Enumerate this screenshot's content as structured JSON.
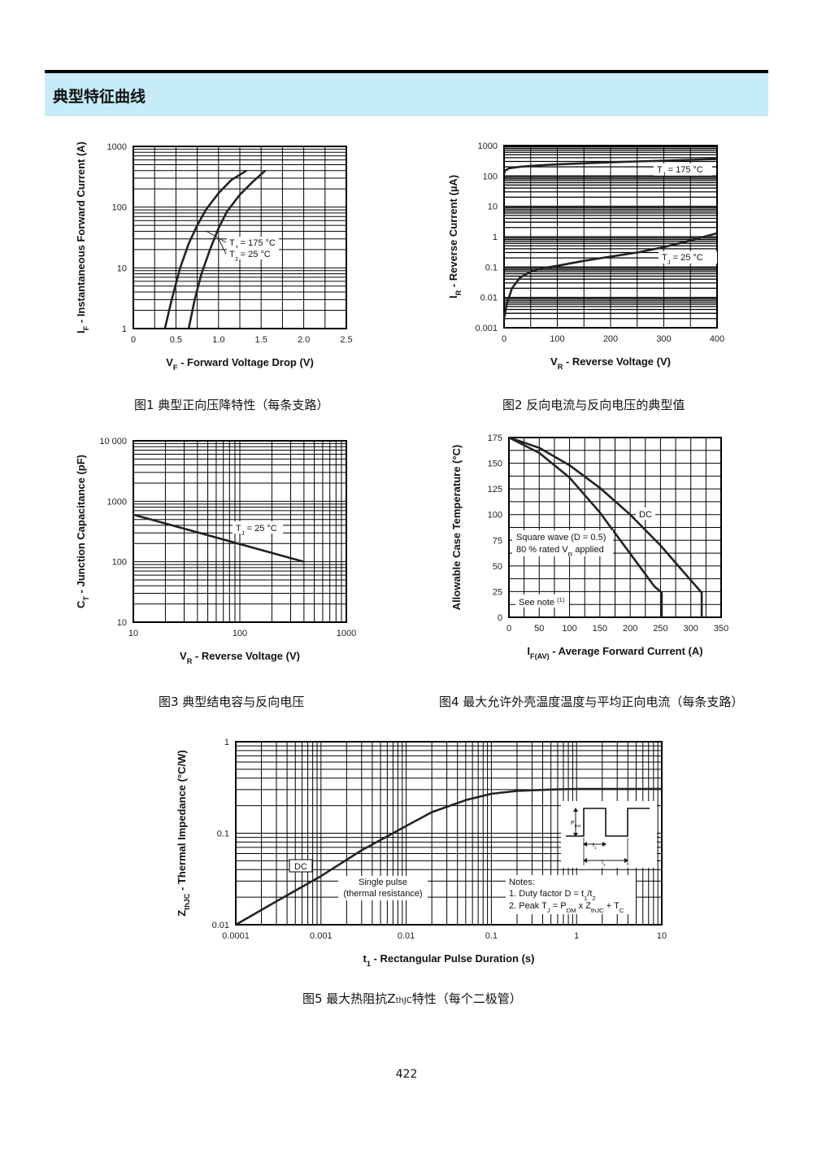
{
  "header": {
    "title": "典型特征曲线"
  },
  "page_number": "422",
  "captions": {
    "fig1": "图1  典型正向压降特性（每条支路）",
    "fig2": "图2  反向电流与反向电压的典型值",
    "fig3": "图3  典型结电容与反向电压",
    "fig4": "图4  最大允许外壳温度温度与平均正向电流（每条支路）",
    "fig5a": "图5  最大热阻抗Z",
    "fig5sub": "thJC",
    "fig5b": "特性（每个二极管）"
  },
  "chart_data": [
    {
      "id": "fig1",
      "type": "line",
      "xlabel": "V",
      "xlabel_sub": "F",
      "xlabel_rest": " - Forward Voltage Drop (V)",
      "ylabel": "I",
      "ylabel_sub": "F",
      "ylabel_rest": " - Instantaneous Forward Current (A)",
      "xlim": [
        0,
        2.5
      ],
      "ylim": [
        1,
        1000
      ],
      "yscale": "log",
      "xticks": [
        "0",
        "0.5",
        "1.0",
        "1.5",
        "2.0",
        "2.5"
      ],
      "yticks": [
        "1",
        "10",
        "100",
        "1000"
      ],
      "series": [
        {
          "name": "T = 175 °C",
          "name_pre": "T",
          "name_sub": "J",
          "name_post": " = 175 °C",
          "x": [
            0.37,
            0.45,
            0.55,
            0.65,
            0.75,
            0.85,
            1.0,
            1.15,
            1.33
          ],
          "y": [
            1,
            3,
            10,
            25,
            50,
            90,
            170,
            280,
            400
          ]
        },
        {
          "name": "T = 25 °C",
          "name_pre": "T",
          "name_sub": "J",
          "name_post": " = 25 °C",
          "x": [
            0.65,
            0.72,
            0.8,
            0.9,
            1.0,
            1.1,
            1.25,
            1.4,
            1.55
          ],
          "y": [
            1,
            3,
            8,
            20,
            45,
            85,
            160,
            260,
            400
          ]
        }
      ]
    },
    {
      "id": "fig2",
      "type": "line",
      "xlabel": "V",
      "xlabel_sub": "R",
      "xlabel_rest": " - Reverse Voltage (V)",
      "ylabel": "I",
      "ylabel_sub": "R",
      "ylabel_rest": " - Reverse Current (µA)",
      "xlim": [
        0,
        400
      ],
      "ylim": [
        0.001,
        1000
      ],
      "yscale": "log",
      "xticks": [
        "0",
        "100",
        "200",
        "300",
        "400"
      ],
      "yticks": [
        "0.001",
        "0.01",
        "0.1",
        "1",
        "10",
        "100",
        "1000"
      ],
      "series": [
        {
          "name": "T = 175 °C",
          "name_pre": "T",
          "name_sub": "J",
          "name_post": " = 175 °C",
          "x": [
            0,
            2,
            10,
            30,
            60,
            100,
            150,
            200,
            250,
            300,
            350,
            400
          ],
          "y": [
            120,
            150,
            180,
            200,
            220,
            240,
            260,
            280,
            300,
            320,
            340,
            360
          ]
        },
        {
          "name": "T = 25 °C",
          "name_pre": "T",
          "name_sub": "J",
          "name_post": " = 25 °C",
          "x": [
            0,
            5,
            15,
            30,
            50,
            70,
            100,
            150,
            200,
            250,
            300,
            350,
            400
          ],
          "y": [
            0.002,
            0.006,
            0.02,
            0.045,
            0.07,
            0.09,
            0.11,
            0.16,
            0.22,
            0.3,
            0.45,
            0.75,
            1.3
          ]
        }
      ]
    },
    {
      "id": "fig3",
      "type": "line",
      "xlabel": "V",
      "xlabel_sub": "R",
      "xlabel_rest": " - Reverse Voltage (V)",
      "ylabel": "C",
      "ylabel_sub": "T",
      "ylabel_rest": " - Junction Capacitance (pF)",
      "xlim": [
        10,
        1000
      ],
      "ylim": [
        10,
        10000
      ],
      "xscale": "log",
      "yscale": "log",
      "xticks": [
        "10",
        "100",
        "1000"
      ],
      "yticks": [
        "10",
        "100",
        "1000",
        "10 000"
      ],
      "series": [
        {
          "name": "T = 25 °C",
          "name_pre": "T",
          "name_sub": "J",
          "name_post": " = 25 °C",
          "x": [
            10,
            400
          ],
          "y": [
            600,
            100
          ]
        }
      ]
    },
    {
      "id": "fig4",
      "type": "line",
      "xlabel": "I",
      "xlabel_sub": "F(AV)",
      "xlabel_rest": " - Average Forward Current (A)",
      "ylabel": "Allowable Case Temperature (°C)",
      "xlim": [
        0,
        350
      ],
      "ylim": [
        0,
        175
      ],
      "xticks": [
        "0",
        "50",
        "100",
        "150",
        "200",
        "250",
        "300",
        "350"
      ],
      "yticks": [
        "0",
        "25",
        "50",
        "75",
        "100",
        "125",
        "150",
        "175"
      ],
      "annotations": {
        "dc": "DC",
        "square1": "Square wave (D = 0.5)",
        "square2_pre": "80 % rated V",
        "square2_sub": "R",
        "square2_post": " applied",
        "note": "See note",
        "note_sup": "(1)"
      },
      "series": [
        {
          "name": "DC",
          "x": [
            0,
            50,
            100,
            150,
            200,
            250,
            300,
            318,
            318
          ],
          "y": [
            175,
            165,
            148,
            126,
            100,
            70,
            36,
            24,
            0
          ]
        },
        {
          "name": "Square wave (D = 0.5)",
          "x": [
            0,
            50,
            100,
            150,
            200,
            240,
            252,
            252
          ],
          "y": [
            175,
            160,
            136,
            102,
            62,
            30,
            24,
            0
          ]
        }
      ]
    },
    {
      "id": "fig5",
      "type": "line",
      "xlabel": "t",
      "xlabel_sub": "1",
      "xlabel_rest": " - Rectangular Pulse Duration (s)",
      "ylabel": "Z",
      "ylabel_sub": "thJC",
      "ylabel_rest": " - Thermal Impedance (°C/W)",
      "xlim": [
        0.0001,
        10
      ],
      "ylim": [
        0.01,
        1
      ],
      "xscale": "log",
      "yscale": "log",
      "xticks": [
        "0.0001",
        "0.001",
        "0.01",
        "0.1",
        "1",
        "10"
      ],
      "yticks": [
        "0.01",
        "0.1",
        "1"
      ],
      "annotations": {
        "dc": "DC",
        "single1": "Single pulse",
        "single2": "(thermal resistance)",
        "notes": "Notes:",
        "note1_pre": "1. Duty factor D = t",
        "note1_sub1": "1",
        "note1_mid": "/t",
        "note1_sub2": "2",
        "note2_pre": "2. Peak T",
        "note2_sub1": "J",
        "note2_a": " = P",
        "note2_sub2": "DM",
        "note2_b": " x Z",
        "note2_sub3": "thJC",
        "note2_c": " + T",
        "note2_sub4": "C",
        "pdm": "P",
        "pdm_sub": "DM",
        "t1": "t",
        "t1_sub": "1",
        "t2": "t",
        "t2_sub": "2"
      },
      "series": [
        {
          "name": "DC",
          "x": [
            0.0001,
            0.0003,
            0.001,
            0.003,
            0.01,
            0.02,
            0.05,
            0.1,
            0.2,
            0.5,
            1,
            2,
            5,
            10
          ],
          "y": [
            0.01,
            0.018,
            0.034,
            0.065,
            0.12,
            0.17,
            0.23,
            0.27,
            0.29,
            0.3,
            0.305,
            0.305,
            0.305,
            0.305
          ]
        }
      ]
    }
  ]
}
